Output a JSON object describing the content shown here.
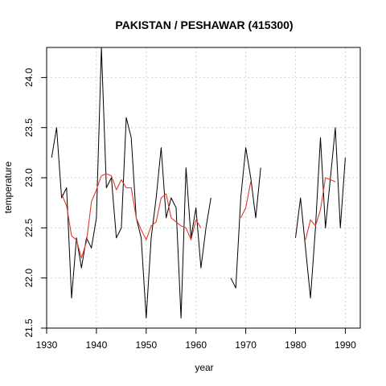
{
  "chart_data": {
    "type": "line",
    "title": "PAKISTAN / PESHAWAR (415300)",
    "xlabel": "year",
    "ylabel": "temperature",
    "xlim": [
      1930,
      1993
    ],
    "ylim": [
      21.5,
      24.3
    ],
    "x_ticks": [
      1930,
      1940,
      1950,
      1960,
      1970,
      1980,
      1990
    ],
    "y_ticks": [
      21.5,
      22.0,
      22.5,
      23.0,
      23.5,
      24.0
    ],
    "x_tick_labels": [
      "1930",
      "1940",
      "1950",
      "1960",
      "1970",
      "1980",
      "1990"
    ],
    "y_tick_labels": [
      "21.5",
      "22.0",
      "22.5",
      "23.0",
      "23.5",
      "24.0"
    ],
    "grid": true,
    "colors": {
      "annual": "#000000",
      "smoothed": "#e03a2e",
      "grid": "#d3d3d3"
    },
    "series": [
      {
        "key": "annual",
        "color": "#000000",
        "x": [
          1931,
          1932,
          1933,
          1934,
          1935,
          1936,
          1937,
          1938,
          1939,
          1940,
          1941,
          1942,
          1943,
          1944,
          1945,
          1946,
          1947,
          1948,
          1949,
          1950,
          1951,
          1952,
          1953,
          1954,
          1955,
          1956,
          1957,
          1958,
          1959,
          1960,
          1961,
          1962,
          1963,
          1967,
          1968,
          1969,
          1970,
          1971,
          1972,
          1973,
          1980,
          1981,
          1982,
          1983,
          1984,
          1985,
          1986,
          1987,
          1988,
          1989,
          1990
        ],
        "y": [
          23.2,
          23.5,
          22.8,
          22.9,
          21.8,
          22.4,
          22.1,
          22.4,
          22.3,
          22.6,
          24.3,
          22.9,
          23.0,
          22.4,
          22.5,
          23.6,
          23.4,
          22.6,
          22.4,
          21.6,
          22.4,
          22.8,
          23.3,
          22.6,
          22.8,
          22.7,
          21.6,
          23.1,
          22.4,
          22.7,
          22.1,
          22.5,
          22.8,
          22.0,
          21.9,
          22.8,
          23.3,
          23.0,
          22.6,
          23.1,
          22.4,
          22.8,
          22.3,
          21.8,
          22.5,
          23.4,
          22.5,
          23.0,
          23.5,
          22.5,
          23.2
        ],
        "segments": [
          [
            0,
            32
          ],
          [
            33,
            39
          ],
          [
            40,
            50
          ]
        ]
      },
      {
        "key": "smoothed",
        "color": "#e03a2e",
        "x": [
          1933,
          1934,
          1935,
          1936,
          1937,
          1938,
          1939,
          1940,
          1941,
          1942,
          1943,
          1944,
          1945,
          1946,
          1947,
          1948,
          1949,
          1950,
          1951,
          1952,
          1953,
          1954,
          1955,
          1956,
          1957,
          1958,
          1959,
          1960,
          1961,
          1969,
          1970,
          1971,
          1982,
          1983,
          1984,
          1985,
          1986,
          1987,
          1988
        ],
        "y": [
          22.84,
          22.72,
          22.42,
          22.38,
          22.2,
          22.36,
          22.76,
          22.88,
          23.02,
          23.04,
          23.02,
          22.88,
          22.98,
          22.9,
          22.9,
          22.6,
          22.48,
          22.38,
          22.52,
          22.56,
          22.8,
          22.84,
          22.6,
          22.56,
          22.52,
          22.5,
          22.38,
          22.58,
          22.5,
          22.6,
          22.7,
          22.96,
          22.38,
          22.58,
          22.52,
          22.68,
          23.0,
          22.98,
          22.96
        ],
        "segments": [
          [
            0,
            28
          ],
          [
            29,
            31
          ],
          [
            32,
            38
          ]
        ]
      }
    ]
  }
}
